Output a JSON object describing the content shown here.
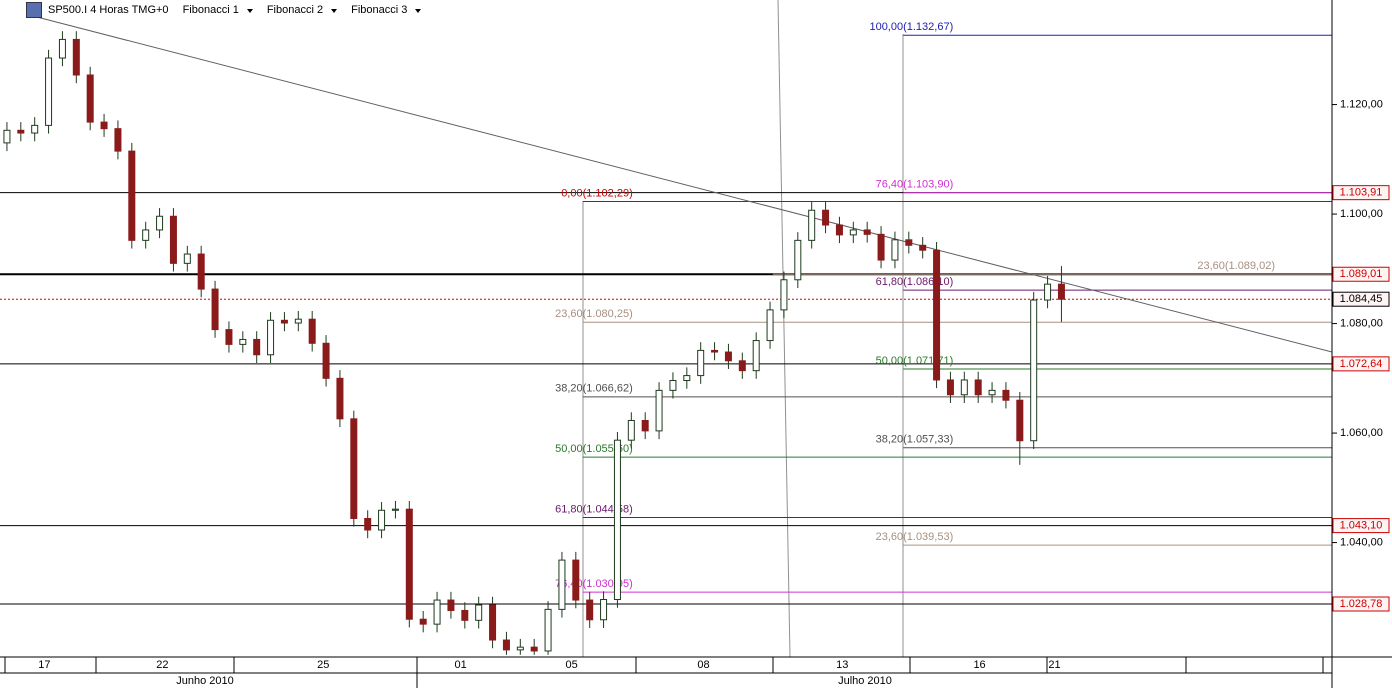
{
  "toolbar": {
    "symbol": "SP500.I 4 Horas TMG+0",
    "menus": [
      "Fibonacci 1",
      "Fibonacci 2",
      "Fibonacci 3"
    ]
  },
  "chart_data": {
    "type": "candlestick",
    "open": [
      1113.0,
      1115.3,
      1114.8,
      1116.2,
      1128.5,
      1131.9,
      1125.4,
      1116.8,
      1115.6,
      1111.5,
      1095.2,
      1097.1,
      1099.6,
      1091.0,
      1092.7,
      1086.3,
      1078.9,
      1076.2,
      1077.1,
      1074.3,
      1080.6,
      1080.1,
      1080.8,
      1076.4,
      1070.0,
      1062.6,
      1044.4,
      1042.3,
      1045.9,
      1046.1,
      1026.0,
      1025.1,
      1029.5,
      1027.6,
      1025.8,
      1028.6,
      1022.2,
      1020.4,
      1020.9,
      1020.2,
      1027.8,
      1036.8,
      1029.5,
      1025.9,
      1029.6,
      1058.7,
      1062.3,
      1060.4,
      1067.8,
      1069.6,
      1070.5,
      1075.1,
      1074.8,
      1073.2,
      1071.4,
      1076.9,
      1082.5,
      1088.0,
      1095.2,
      1100.7,
      1098.0,
      1096.2,
      1097.1,
      1096.3,
      1091.6,
      1095.3,
      1094.3,
      1093.4,
      1069.7,
      1067.0,
      1069.7,
      1067.0,
      1067.8,
      1066.0,
      1058.6,
      1084.3,
      1087.2
    ],
    "high": [
      1116.8,
      1116.8,
      1117.7,
      1130.0,
      1133.4,
      1133.4,
      1126.9,
      1118.3,
      1117.1,
      1113.0,
      1098.6,
      1101.1,
      1101.1,
      1094.2,
      1094.2,
      1087.8,
      1080.4,
      1078.6,
      1078.6,
      1082.1,
      1082.1,
      1082.3,
      1082.3,
      1077.9,
      1071.5,
      1064.1,
      1045.9,
      1047.4,
      1047.6,
      1047.6,
      1027.5,
      1031.0,
      1031.0,
      1029.1,
      1030.1,
      1030.1,
      1023.7,
      1022.4,
      1022.4,
      1029.3,
      1038.3,
      1038.3,
      1031.0,
      1031.1,
      1060.2,
      1063.8,
      1063.8,
      1069.3,
      1071.1,
      1072.0,
      1076.6,
      1076.6,
      1076.3,
      1074.7,
      1078.4,
      1084.0,
      1089.5,
      1096.7,
      1102.2,
      1102.2,
      1099.5,
      1098.6,
      1098.6,
      1097.8,
      1096.8,
      1096.8,
      1095.8,
      1094.9,
      1071.2,
      1071.2,
      1071.2,
      1069.3,
      1069.3,
      1067.5,
      1085.8,
      1088.7,
      1090.5
    ],
    "low": [
      1111.5,
      1113.3,
      1113.3,
      1114.7,
      1127.0,
      1123.9,
      1115.3,
      1114.1,
      1110.0,
      1093.7,
      1093.7,
      1095.6,
      1089.5,
      1089.5,
      1084.8,
      1077.4,
      1074.7,
      1074.7,
      1072.8,
      1072.8,
      1078.6,
      1078.6,
      1074.9,
      1068.5,
      1061.1,
      1042.9,
      1040.8,
      1040.8,
      1044.4,
      1024.5,
      1023.6,
      1023.6,
      1026.1,
      1024.3,
      1024.3,
      1020.7,
      1019.5,
      1019.5,
      1019.5,
      1019.5,
      1026.3,
      1028.0,
      1024.4,
      1024.4,
      1028.1,
      1057.2,
      1058.9,
      1058.9,
      1066.3,
      1068.1,
      1069.0,
      1073.3,
      1071.7,
      1069.9,
      1069.9,
      1075.4,
      1081.0,
      1086.5,
      1093.7,
      1096.5,
      1094.7,
      1094.7,
      1094.8,
      1090.1,
      1090.1,
      1092.8,
      1091.9,
      1068.2,
      1065.5,
      1065.5,
      1065.5,
      1065.5,
      1064.5,
      1054.2,
      1057.1,
      1082.8,
      1080.3
    ],
    "close": [
      1115.3,
      1114.8,
      1116.2,
      1128.5,
      1131.9,
      1125.4,
      1116.8,
      1115.6,
      1111.5,
      1095.2,
      1097.1,
      1099.6,
      1091.0,
      1092.7,
      1086.3,
      1078.9,
      1076.2,
      1077.1,
      1074.3,
      1080.6,
      1080.1,
      1080.8,
      1076.4,
      1070.0,
      1062.6,
      1044.4,
      1042.3,
      1045.9,
      1046.1,
      1026.0,
      1025.1,
      1029.5,
      1027.6,
      1025.8,
      1028.6,
      1022.2,
      1020.4,
      1020.9,
      1020.2,
      1027.8,
      1036.8,
      1029.5,
      1025.9,
      1029.6,
      1058.7,
      1062.3,
      1060.4,
      1067.8,
      1069.6,
      1070.5,
      1075.1,
      1074.8,
      1073.2,
      1071.4,
      1076.9,
      1082.5,
      1088.0,
      1095.2,
      1100.7,
      1098.0,
      1096.2,
      1097.1,
      1096.3,
      1091.6,
      1095.3,
      1094.3,
      1093.4,
      1069.7,
      1067.0,
      1069.7,
      1067.0,
      1067.8,
      1066.0,
      1058.6,
      1084.3,
      1087.2,
      1084.45
    ],
    "up_color": "#ffffff",
    "down_color": "#8b1a1a",
    "wick_color": "#1e3a1e",
    "xlim": [
      -0.5,
      95.5
    ],
    "xticks": [
      {
        "value": 2.7,
        "label": "17"
      },
      {
        "value": 11.2,
        "label": "22"
      },
      {
        "value": 22.8,
        "label": "25"
      },
      {
        "value": 32.7,
        "label": "01"
      },
      {
        "value": 40.7,
        "label": "05"
      },
      {
        "value": 50.2,
        "label": "08"
      },
      {
        "value": 60.2,
        "label": "13"
      },
      {
        "value": 70.1,
        "label": "16"
      },
      {
        "value": 75.5,
        "label": "21"
      }
    ],
    "months": [
      "Junho 2010",
      "Julho 2010"
    ],
    "ylim": [
      1019.1,
      1139.1
    ],
    "yticks": [
      {
        "value": 1040,
        "label": "1.040,00"
      },
      {
        "value": 1060,
        "label": "1.060,00"
      },
      {
        "value": 1080,
        "label": "1.080,00"
      },
      {
        "value": 1100,
        "label": "1.100,00"
      },
      {
        "value": 1120,
        "label": "1.120,00"
      }
    ],
    "price_lines": [
      {
        "value": 1103.91,
        "label": "1.103,91",
        "color": "#000000",
        "label_color": "#cc0000",
        "style": "solid"
      },
      {
        "value": 1089.01,
        "label": "1.089,01",
        "color": "#000000",
        "label_color": "#cc0000",
        "style": "bold"
      },
      {
        "value": 1084.45,
        "label": "1.084,45",
        "color": "#dd0000",
        "label_color": "#000000",
        "style": "dotted"
      },
      {
        "value": 1072.64,
        "label": "1.072,64",
        "color": "#000000",
        "label_color": "#cc0000",
        "style": "solid"
      },
      {
        "value": 1043.1,
        "label": "1.043,10",
        "color": "#000000",
        "label_color": "#cc0000",
        "style": "solid"
      },
      {
        "value": 1028.78,
        "label": "1.028,78",
        "color": "#000000",
        "label_color": "#cc0000",
        "style": "solid"
      }
    ],
    "trendline": {
      "x": [
        1.7,
        95.5
      ],
      "y": [
        1136.3,
        1074.8
      ]
    },
    "fibonacci": [
      {
        "start": 41.5,
        "labels": "left",
        "levels": [
          {
            "value": 1102.29,
            "label": "0,00(1.102,29)",
            "color": "#cc0000"
          },
          {
            "value": 1080.25,
            "label": "23,60(1.080,25)",
            "color": "#a89080"
          },
          {
            "value": 1066.62,
            "label": "38,20(1.066,62)",
            "color": "#505050"
          },
          {
            "value": 1055.6,
            "label": "50,00(1.055,60)",
            "color": "#2a7a2a"
          },
          {
            "value": 1044.58,
            "label": "61,80(1.044,58)",
            "color": "#6a1a6a"
          },
          {
            "value": 1030.95,
            "label": "76,40(1.030,95)",
            "color": "#d030d0"
          }
        ]
      },
      {
        "start": 64.6,
        "labels": "left",
        "levels": [
          {
            "value": 1132.67,
            "label": "100,00(1.132,67)",
            "color": "#2020b0"
          },
          {
            "value": 1103.9,
            "label": "76,40(1.103,90)",
            "color": "#d030d0"
          },
          {
            "value": 1086.1,
            "label": "61,80(1.086,10)",
            "color": "#6a1a6a"
          },
          {
            "value": 1071.71,
            "label": "50,00(1.071,71)",
            "color": "#2a7a2a"
          },
          {
            "value": 1057.33,
            "label": "38,20(1.057,33)",
            "color": "#505050"
          },
          {
            "value": 1039.53,
            "label": "23,60(1.039,53)",
            "color": "#a89080"
          }
        ]
      },
      {
        "start": 55.2,
        "labels": "right",
        "levels": [
          {
            "value": 1089.02,
            "label": "23,60(1.089,02)",
            "color": "#a89080"
          }
        ]
      }
    ]
  }
}
